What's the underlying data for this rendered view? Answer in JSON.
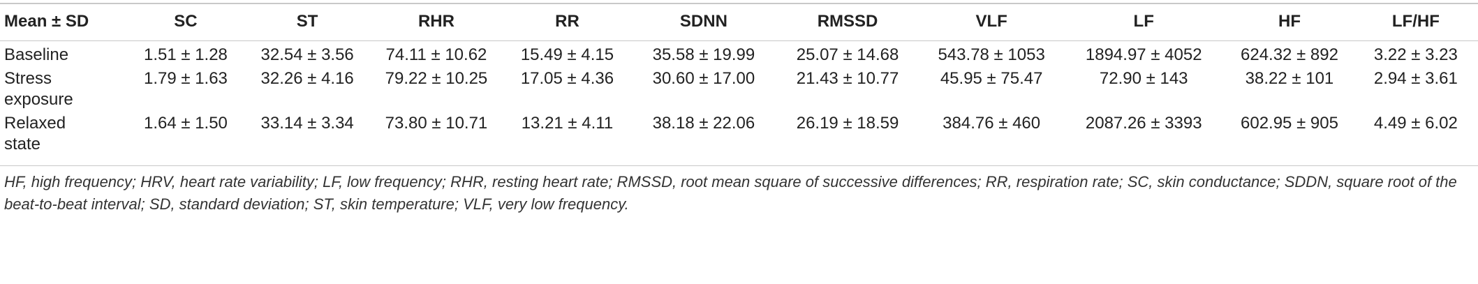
{
  "table": {
    "headers": [
      "Mean ± SD",
      "SC",
      "ST",
      "RHR",
      "RR",
      "SDNN",
      "RMSSD",
      "VLF",
      "LF",
      "HF",
      "LF/HF"
    ],
    "rows": [
      {
        "label_line1": "Baseline",
        "label_line2": "",
        "cells": [
          "1.51 ± 1.28",
          "32.54 ± 3.56",
          "74.11 ± 10.62",
          "15.49 ± 4.15",
          "35.58 ± 19.99",
          "25.07 ± 14.68",
          "543.78 ± 1053",
          "1894.97 ± 4052",
          "624.32 ± 892",
          "3.22 ± 3.23"
        ]
      },
      {
        "label_line1": "Stress",
        "label_line2": "exposure",
        "cells": [
          "1.79 ± 1.63",
          "32.26 ± 4.16",
          "79.22 ± 10.25",
          "17.05 ± 4.36",
          "30.60 ± 17.00",
          "21.43 ± 10.77",
          "45.95 ± 75.47",
          "72.90 ± 143",
          "38.22 ± 101",
          "2.94 ± 3.61"
        ]
      },
      {
        "label_line1": "Relaxed",
        "label_line2": "state",
        "cells": [
          "1.64 ± 1.50",
          "33.14 ± 3.34",
          "73.80 ± 10.71",
          "13.21 ± 4.11",
          "38.18 ± 22.06",
          "26.19 ± 18.59",
          "384.76 ± 460",
          "2087.26 ± 3393",
          "602.95 ± 905",
          "4.49 ± 6.02"
        ]
      }
    ]
  },
  "footnote": "HF, high frequency; HRV, heart rate variability; LF, low frequency; RHR, resting heart rate; RMSSD, root mean square of successive differences; RR, respiration rate; SC, skin conductance; SDDN, square root of the beat-to-beat interval; SD, standard deviation; ST, skin temperature; VLF, very low frequency."
}
